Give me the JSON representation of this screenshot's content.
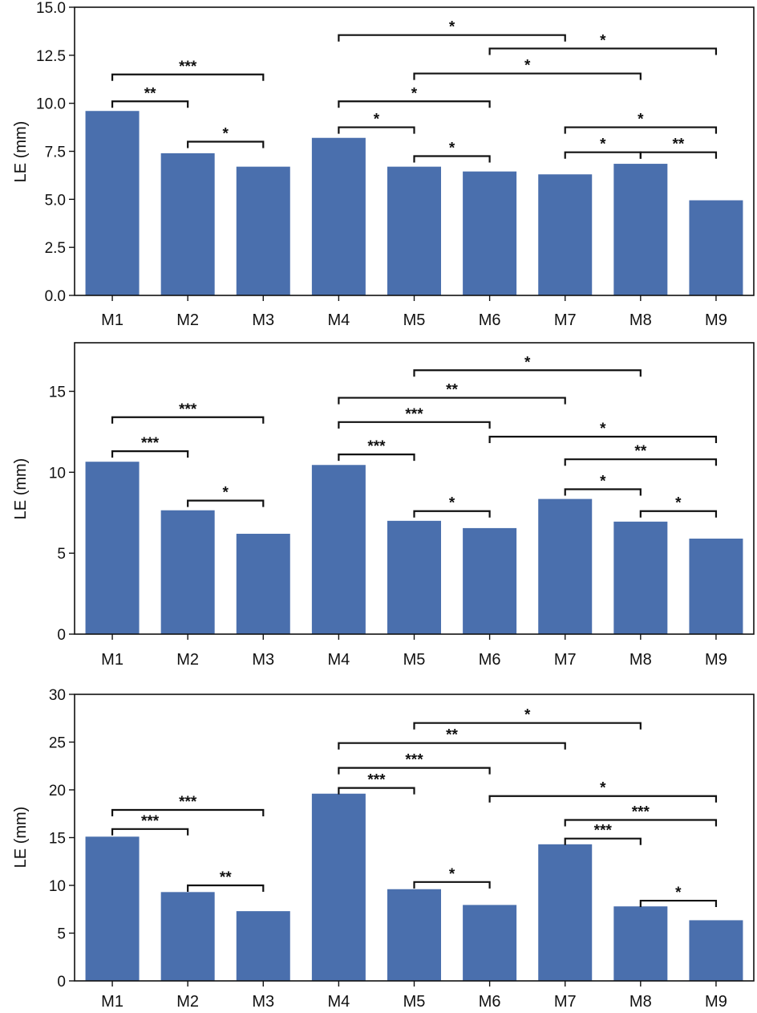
{
  "colors": {
    "bar": "#4a6fad",
    "axis": "#111111",
    "bracket": "#111111"
  },
  "chart_data": [
    {
      "type": "bar",
      "title": "",
      "xlabel": "",
      "ylabel": "LE (mm)",
      "ylim": [
        0,
        15
      ],
      "yticks": [
        0,
        2.5,
        5,
        7.5,
        10,
        12.5,
        15
      ],
      "ytick_labels": [
        "0.0",
        "2.5",
        "5.0",
        "7.5",
        "10.0",
        "12.5",
        "15.0"
      ],
      "categories": [
        "M1",
        "M2",
        "M3",
        "M4",
        "M5",
        "M6",
        "M7",
        "M8",
        "M9"
      ],
      "values": [
        9.6,
        7.4,
        6.7,
        8.2,
        6.7,
        6.45,
        6.3,
        6.85,
        4.95
      ],
      "significance": [
        {
          "a": 0,
          "b": 1,
          "y": 10.1,
          "label": "**"
        },
        {
          "a": 0,
          "b": 2,
          "y": 11.5,
          "label": "***"
        },
        {
          "a": 1,
          "b": 2,
          "y": 8.0,
          "label": "*"
        },
        {
          "a": 3,
          "b": 4,
          "y": 8.75,
          "label": "*"
        },
        {
          "a": 3,
          "b": 5,
          "y": 10.1,
          "label": "*"
        },
        {
          "a": 3,
          "b": 6,
          "y": 13.55,
          "label": "*"
        },
        {
          "a": 4,
          "b": 5,
          "y": 7.25,
          "label": "*"
        },
        {
          "a": 4,
          "b": 7,
          "y": 11.55,
          "label": "*"
        },
        {
          "a": 5,
          "b": 8,
          "y": 12.85,
          "label": "*"
        },
        {
          "a": 6,
          "b": 7,
          "y": 7.45,
          "label": "*"
        },
        {
          "a": 6,
          "b": 8,
          "y": 8.75,
          "label": "*"
        },
        {
          "a": 7,
          "b": 8,
          "y": 7.45,
          "label": "**"
        }
      ]
    },
    {
      "type": "bar",
      "title": "",
      "xlabel": "",
      "ylabel": "LE (mm)",
      "ylim": [
        0,
        18
      ],
      "yticks": [
        0,
        5,
        10,
        15
      ],
      "ytick_labels": [
        "0",
        "5",
        "10",
        "15"
      ],
      "categories": [
        "M1",
        "M2",
        "M3",
        "M4",
        "M5",
        "M6",
        "M7",
        "M8",
        "M9"
      ],
      "values": [
        10.65,
        7.65,
        6.2,
        10.45,
        7.0,
        6.55,
        8.35,
        6.95,
        5.9
      ],
      "significance": [
        {
          "a": 0,
          "b": 1,
          "y": 11.3,
          "label": "***"
        },
        {
          "a": 0,
          "b": 2,
          "y": 13.4,
          "label": "***"
        },
        {
          "a": 1,
          "b": 2,
          "y": 8.25,
          "label": "*"
        },
        {
          "a": 3,
          "b": 4,
          "y": 11.1,
          "label": "***"
        },
        {
          "a": 3,
          "b": 5,
          "y": 13.1,
          "label": "***"
        },
        {
          "a": 3,
          "b": 6,
          "y": 14.6,
          "label": "**"
        },
        {
          "a": 4,
          "b": 5,
          "y": 7.6,
          "label": "*"
        },
        {
          "a": 4,
          "b": 7,
          "y": 16.3,
          "label": "*"
        },
        {
          "a": 5,
          "b": 8,
          "y": 12.2,
          "label": "*"
        },
        {
          "a": 6,
          "b": 7,
          "y": 8.95,
          "label": "*"
        },
        {
          "a": 6,
          "b": 8,
          "y": 10.8,
          "label": "**"
        },
        {
          "a": 7,
          "b": 8,
          "y": 7.6,
          "label": "*"
        }
      ]
    },
    {
      "type": "bar",
      "title": "",
      "xlabel": "",
      "ylabel": "LE (mm)",
      "ylim": [
        0,
        30
      ],
      "yticks": [
        0,
        5,
        10,
        15,
        20,
        25,
        30
      ],
      "ytick_labels": [
        "0",
        "5",
        "10",
        "15",
        "20",
        "25",
        "30"
      ],
      "categories": [
        "M1",
        "M2",
        "M3",
        "M4",
        "M5",
        "M6",
        "M7",
        "M8",
        "M9"
      ],
      "values": [
        15.1,
        9.3,
        7.3,
        19.6,
        9.6,
        7.95,
        14.3,
        7.8,
        6.35
      ],
      "significance": [
        {
          "a": 0,
          "b": 1,
          "y": 15.9,
          "label": "***"
        },
        {
          "a": 0,
          "b": 2,
          "y": 17.9,
          "label": "***"
        },
        {
          "a": 1,
          "b": 2,
          "y": 10.0,
          "label": "**"
        },
        {
          "a": 3,
          "b": 4,
          "y": 20.2,
          "label": "***"
        },
        {
          "a": 3,
          "b": 5,
          "y": 22.3,
          "label": "***"
        },
        {
          "a": 3,
          "b": 6,
          "y": 24.9,
          "label": "**"
        },
        {
          "a": 4,
          "b": 5,
          "y": 10.35,
          "label": "*"
        },
        {
          "a": 4,
          "b": 7,
          "y": 27.0,
          "label": "*"
        },
        {
          "a": 5,
          "b": 8,
          "y": 19.35,
          "label": "*"
        },
        {
          "a": 6,
          "b": 7,
          "y": 14.9,
          "label": "***"
        },
        {
          "a": 6,
          "b": 8,
          "y": 16.85,
          "label": "***"
        },
        {
          "a": 7,
          "b": 8,
          "y": 8.4,
          "label": "*"
        }
      ]
    }
  ]
}
